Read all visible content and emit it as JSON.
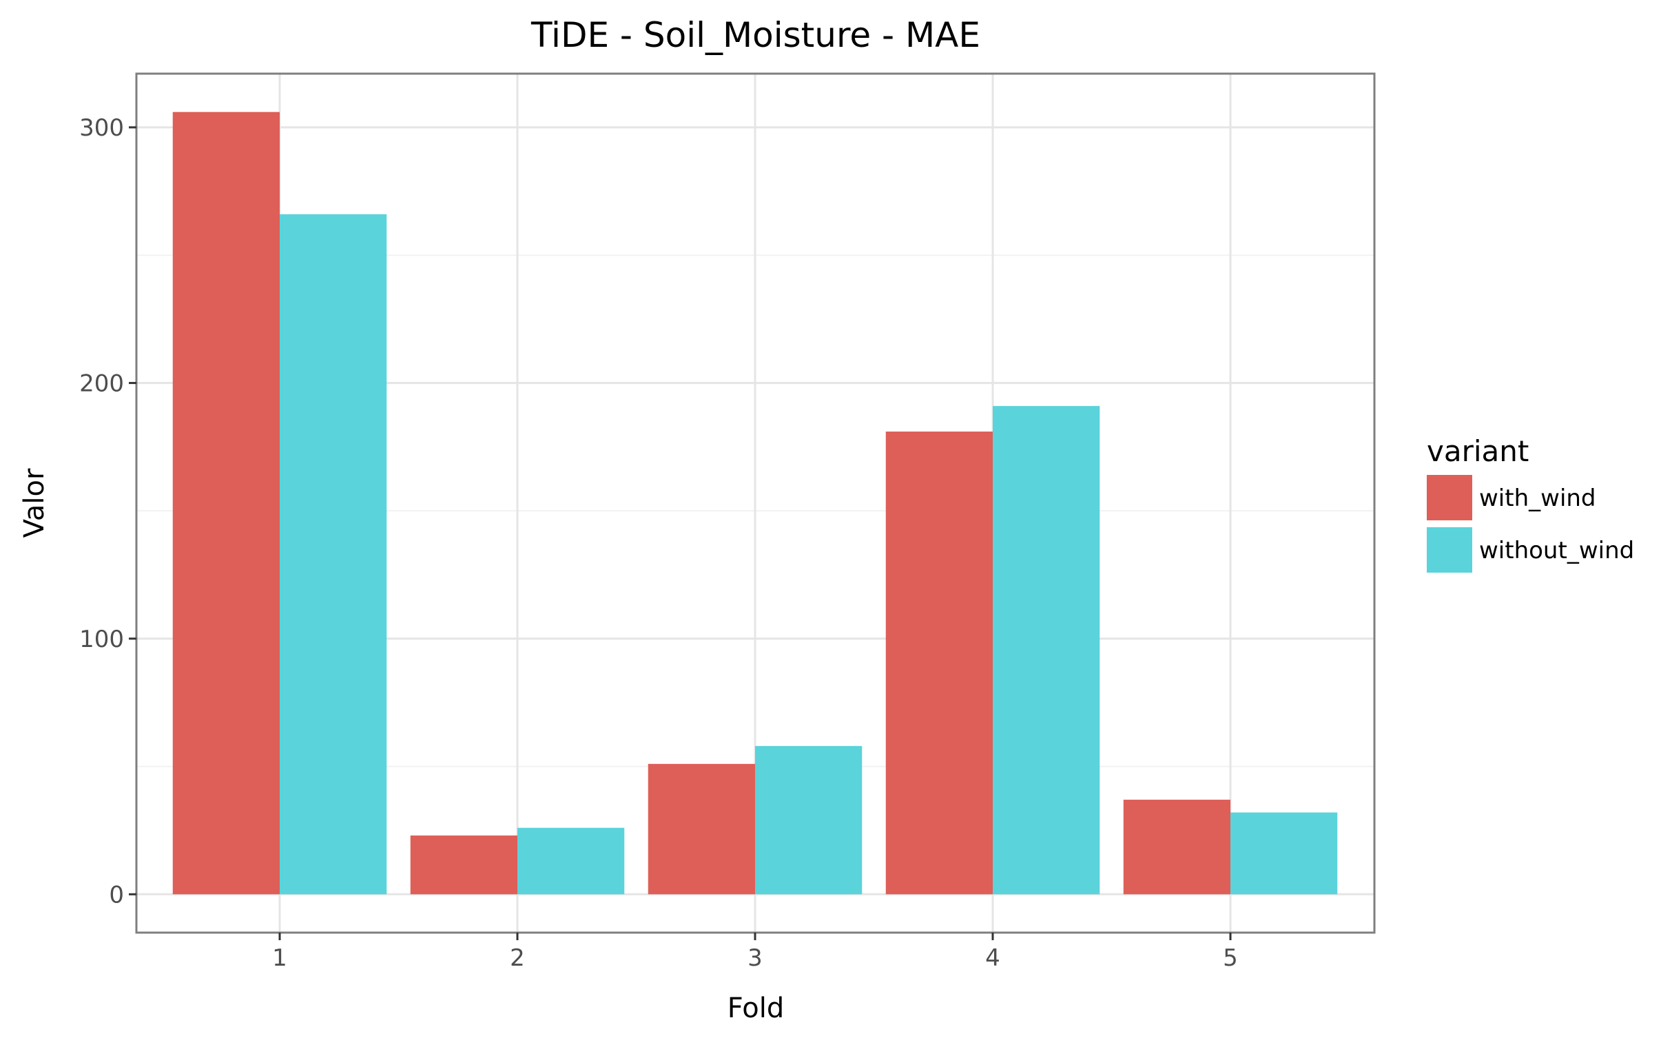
{
  "chart_data": {
    "type": "bar",
    "title": "TiDE - Soil_Moisture - MAE",
    "xlabel": "Fold",
    "ylabel": "Valor",
    "categories": [
      "1",
      "2",
      "3",
      "4",
      "5"
    ],
    "series": [
      {
        "name": "with_wind",
        "color": "#dd5f58",
        "values": [
          306,
          23,
          51,
          181,
          37
        ]
      },
      {
        "name": "without_wind",
        "color": "#5ad3db",
        "values": [
          266,
          26,
          58,
          191,
          32
        ]
      }
    ],
    "yticks": [
      0,
      100,
      200,
      300
    ],
    "ylim": [
      -15,
      321
    ],
    "grid": true,
    "legend": {
      "title": "variant",
      "position": "right"
    }
  }
}
